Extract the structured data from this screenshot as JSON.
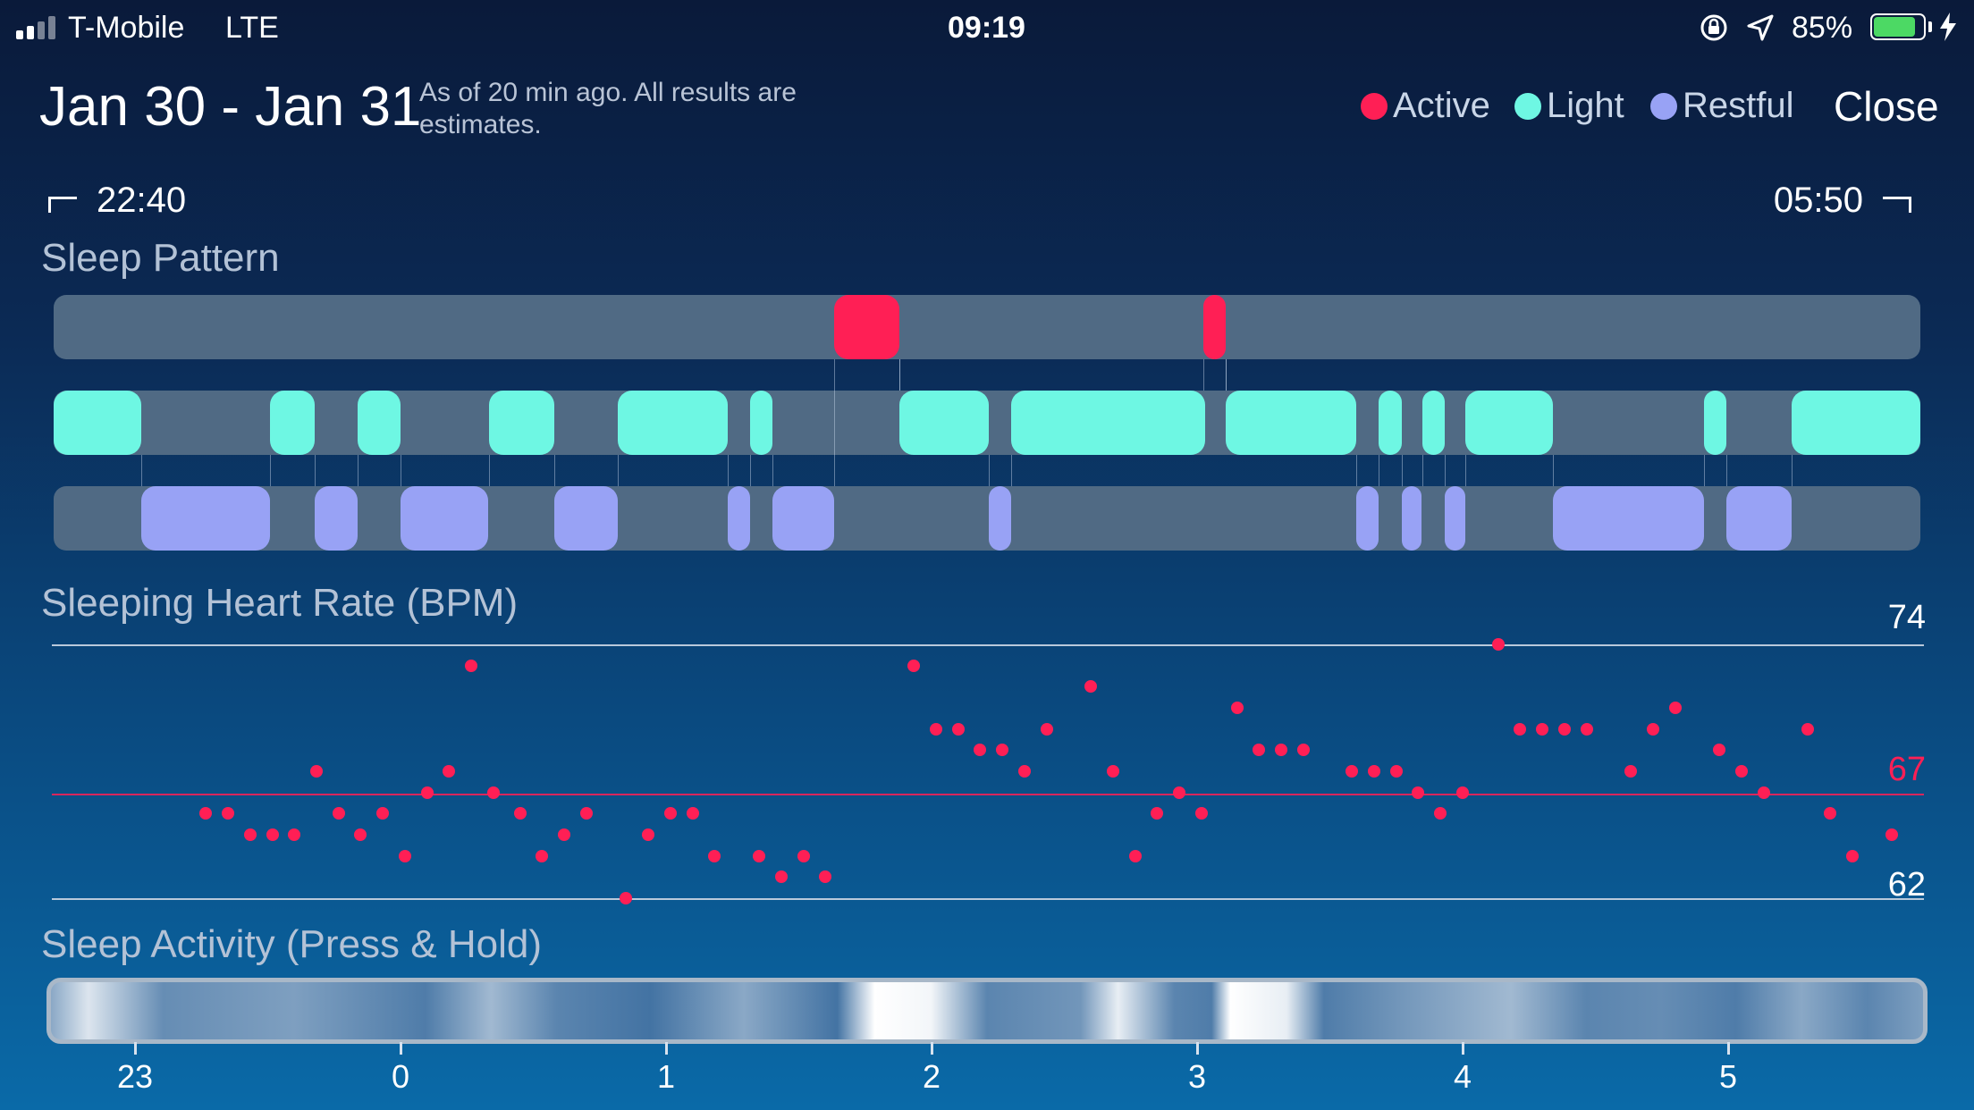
{
  "status_bar": {
    "carrier": "T-Mobile",
    "network": "LTE",
    "time": "09:19",
    "battery_percent": "85%",
    "battery_level": 0.85,
    "icons": [
      "signal-icon",
      "rotation-lock-icon",
      "location-arrow-icon",
      "battery-icon",
      "charging-bolt-icon"
    ]
  },
  "header": {
    "title": "Jan 30 - Jan 31",
    "subtitle": "As of 20 min ago. All results are estimates.",
    "legend": [
      {
        "label": "Active",
        "color": "#ff1f55"
      },
      {
        "label": "Light",
        "color": "#6ef7e3"
      },
      {
        "label": "Restful",
        "color": "#98a2f5"
      }
    ],
    "close_label": "Close"
  },
  "range": {
    "start": "22:40",
    "end": "05:50"
  },
  "sleep_pattern": {
    "title": "Sleep Pattern",
    "colors": {
      "active": "#ff1f55",
      "light": "#6ef7e3",
      "restful": "#98a2f5",
      "track": "#506a84"
    },
    "active": [
      [
        0.418,
        0.453
      ],
      [
        0.616,
        0.628
      ]
    ],
    "light": [
      [
        0.0,
        0.047
      ],
      [
        0.116,
        0.14
      ],
      [
        0.163,
        0.186
      ],
      [
        0.233,
        0.268
      ],
      [
        0.302,
        0.361
      ],
      [
        0.373,
        0.385
      ],
      [
        0.453,
        0.501
      ],
      [
        0.513,
        0.617
      ],
      [
        0.628,
        0.698
      ],
      [
        0.71,
        0.722
      ],
      [
        0.733,
        0.745
      ],
      [
        0.756,
        0.803
      ],
      [
        0.884,
        0.896
      ],
      [
        0.931,
        1.0
      ]
    ],
    "restful": [
      [
        0.047,
        0.116
      ],
      [
        0.14,
        0.163
      ],
      [
        0.186,
        0.233
      ],
      [
        0.268,
        0.302
      ],
      [
        0.361,
        0.373
      ],
      [
        0.385,
        0.418
      ],
      [
        0.501,
        0.513
      ],
      [
        0.698,
        0.71
      ],
      [
        0.722,
        0.733
      ],
      [
        0.745,
        0.756
      ],
      [
        0.803,
        0.884
      ],
      [
        0.896,
        0.931
      ]
    ]
  },
  "heart_rate": {
    "title": "Sleeping Heart Rate (BPM)",
    "max_label": "74",
    "avg_label": "67",
    "min_label": "62",
    "max": 74,
    "avg": 67,
    "min": 62,
    "color": "#ff1f55",
    "points": [
      [
        -0.733,
        66
      ],
      [
        -0.65,
        66
      ],
      [
        -0.567,
        65
      ],
      [
        -0.483,
        65
      ],
      [
        -0.4,
        65
      ],
      [
        -0.317,
        68
      ],
      [
        -0.233,
        66
      ],
      [
        -0.15,
        65
      ],
      [
        -0.067,
        66
      ],
      [
        0.017,
        64
      ],
      [
        0.1,
        67
      ],
      [
        0.183,
        68
      ],
      [
        0.267,
        73
      ],
      [
        0.35,
        67
      ],
      [
        0.45,
        66
      ],
      [
        0.533,
        64
      ],
      [
        0.617,
        65
      ],
      [
        0.7,
        66
      ],
      [
        0.85,
        62
      ],
      [
        0.933,
        65
      ],
      [
        1.017,
        66
      ],
      [
        1.1,
        66
      ],
      [
        1.183,
        64
      ],
      [
        1.35,
        64
      ],
      [
        1.433,
        63
      ],
      [
        1.517,
        64
      ],
      [
        1.6,
        63
      ],
      [
        1.933,
        73
      ],
      [
        2.017,
        70
      ],
      [
        2.1,
        70
      ],
      [
        2.183,
        69
      ],
      [
        2.267,
        69
      ],
      [
        2.35,
        68
      ],
      [
        2.433,
        70
      ],
      [
        2.6,
        72
      ],
      [
        2.683,
        68
      ],
      [
        2.767,
        64
      ],
      [
        2.85,
        66
      ],
      [
        2.933,
        67
      ],
      [
        3.017,
        66
      ],
      [
        3.15,
        71
      ],
      [
        3.233,
        69
      ],
      [
        3.317,
        69
      ],
      [
        3.4,
        69
      ],
      [
        3.583,
        68
      ],
      [
        3.667,
        68
      ],
      [
        3.75,
        68
      ],
      [
        3.833,
        67
      ],
      [
        3.917,
        66
      ],
      [
        4.0,
        67
      ],
      [
        4.133,
        74
      ],
      [
        4.217,
        70
      ],
      [
        4.3,
        70
      ],
      [
        4.383,
        70
      ],
      [
        4.467,
        70
      ],
      [
        4.633,
        68
      ],
      [
        4.717,
        70
      ],
      [
        4.8,
        71
      ],
      [
        4.967,
        69
      ],
      [
        5.05,
        68
      ],
      [
        5.133,
        67
      ],
      [
        5.3,
        70
      ],
      [
        5.383,
        66
      ],
      [
        5.467,
        64
      ],
      [
        5.617,
        65
      ]
    ]
  },
  "sleep_activity": {
    "title": "Sleep Activity (Press & Hold)",
    "axis_ticks": [
      "23",
      "0",
      "1",
      "2",
      "3",
      "4",
      "5"
    ]
  }
}
